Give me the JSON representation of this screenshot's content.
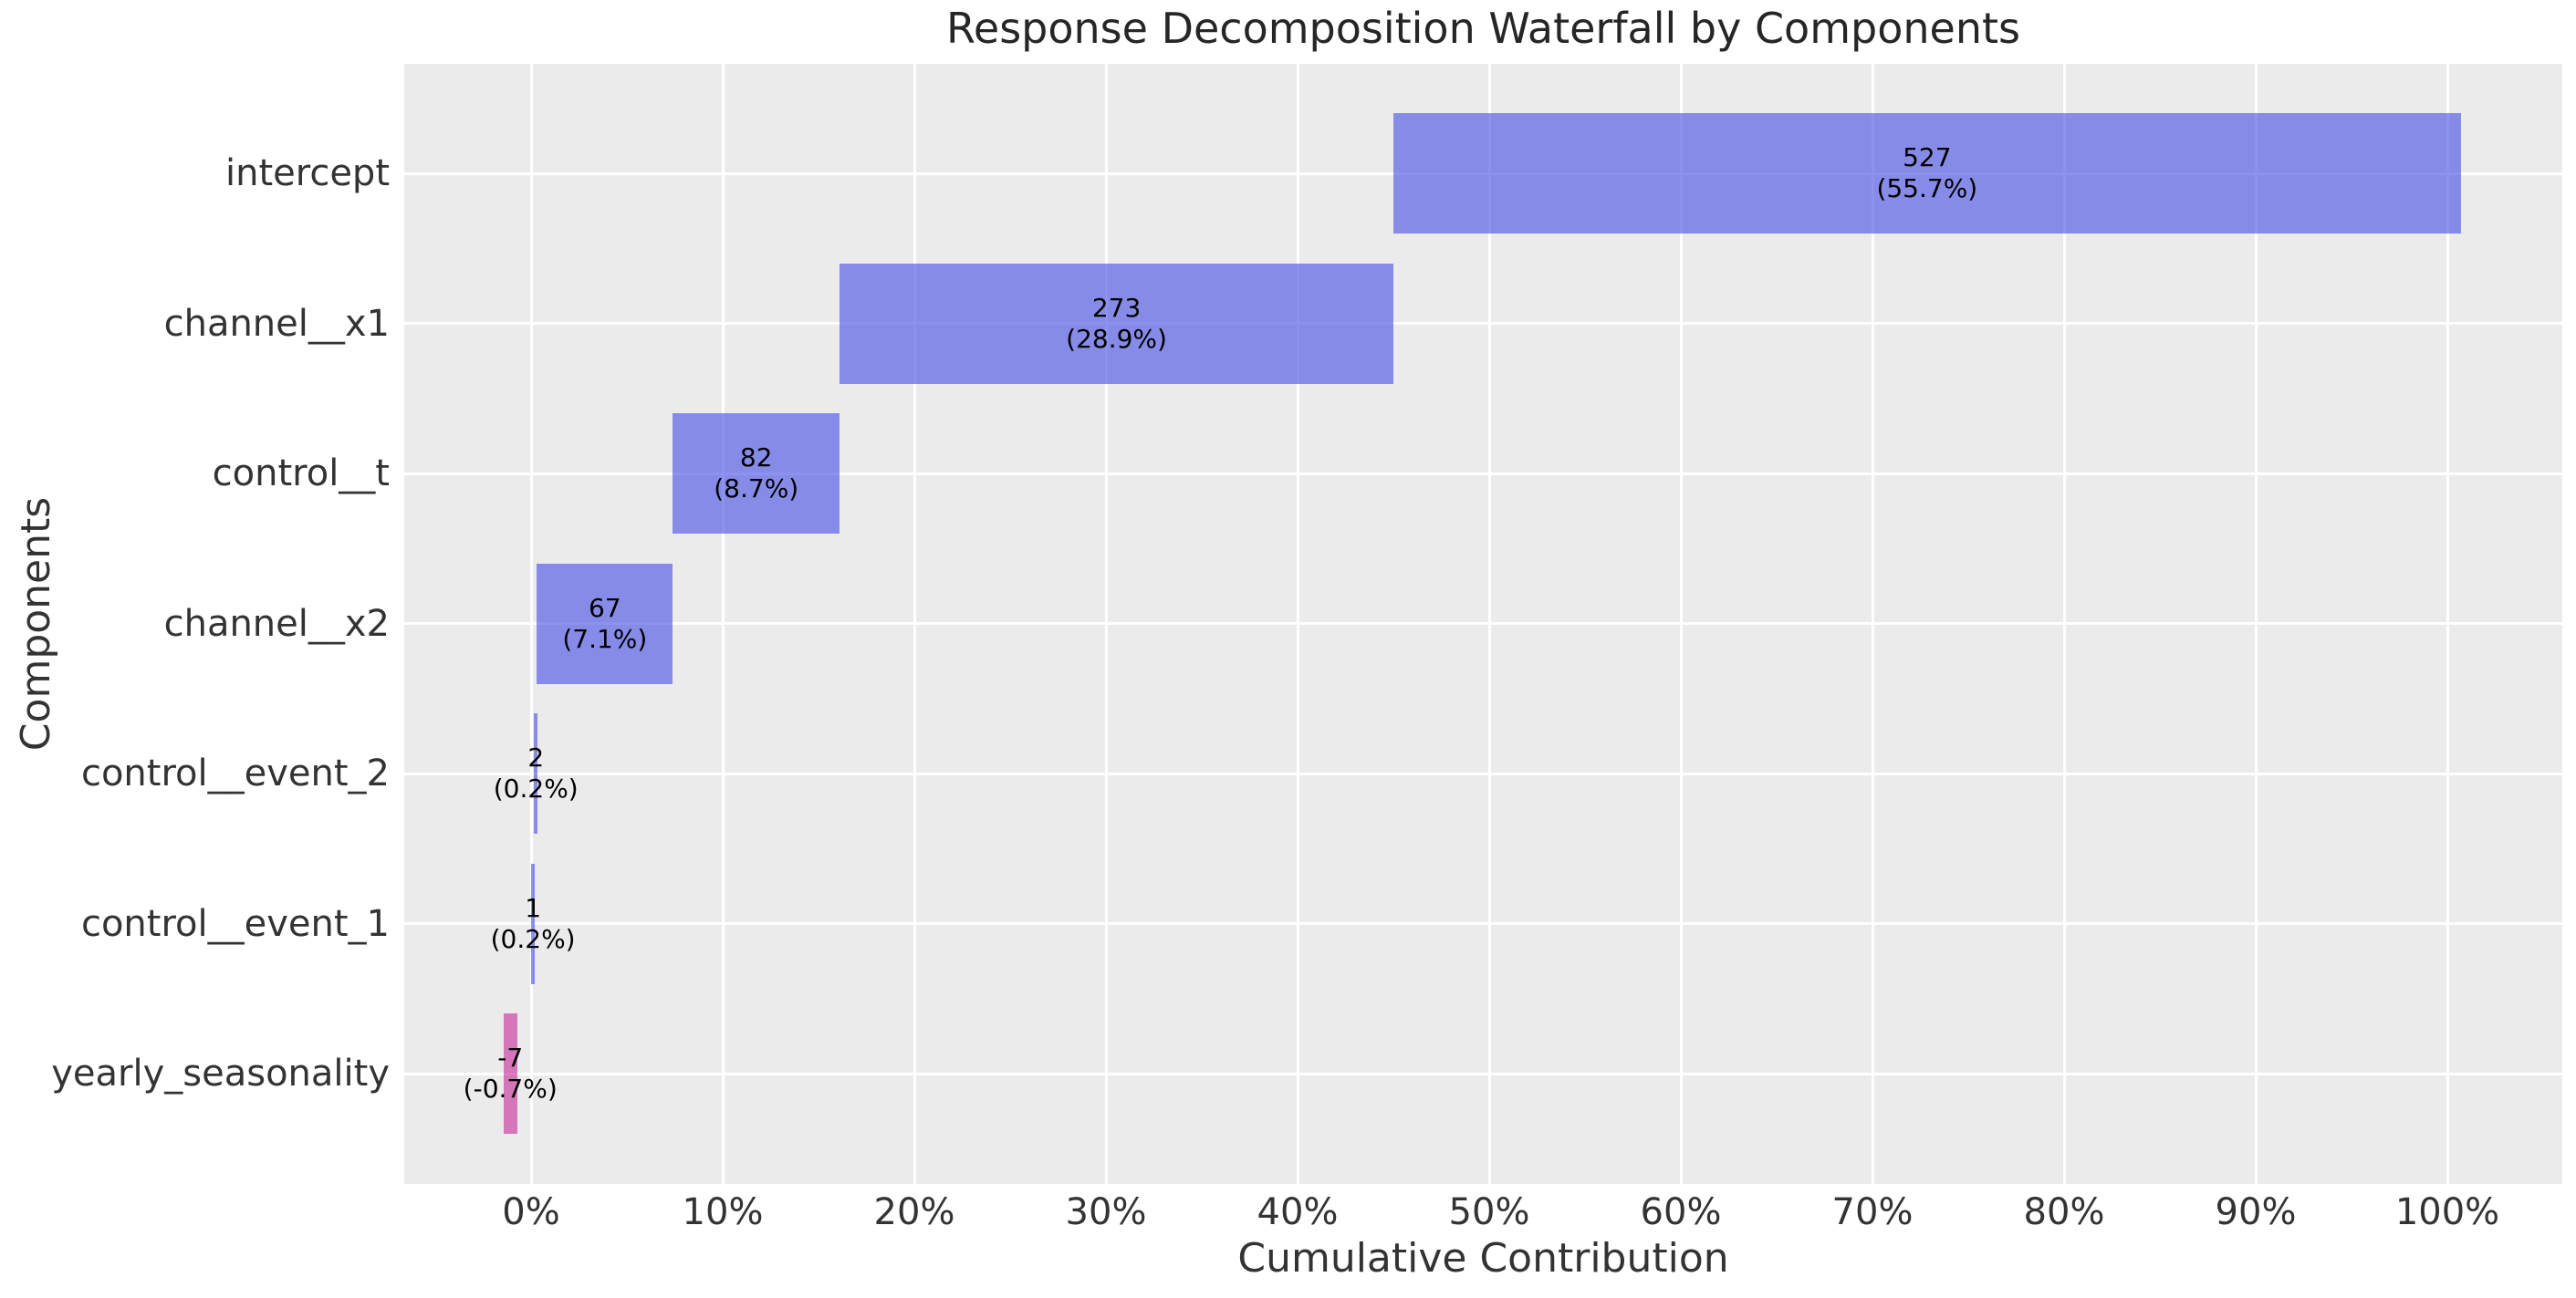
{
  "title": "Response Decomposition Waterfall by Components",
  "axes": {
    "xlabel": "Cumulative Contribution",
    "ylabel": "Components"
  },
  "colors": {
    "plot_background": "#ebebeb",
    "gridline": "#ffffff",
    "positive_bar": "rgba(80,88,230,0.65)",
    "negative_bar": "rgba(200,55,158,0.65)",
    "bar_label": "#000000",
    "tick_label": "#333333",
    "title": "#262626"
  },
  "chart_data": {
    "type": "bar",
    "subtype": "horizontal_waterfall",
    "title": "Response Decomposition Waterfall by Components",
    "xlabel": "Cumulative Contribution",
    "ylabel": "Components",
    "grid": true,
    "legend": false,
    "xlim_pct": [
      -6.6,
      106.0
    ],
    "x_tick_values": [
      0,
      10,
      20,
      30,
      40,
      50,
      60,
      70,
      80,
      90,
      100
    ],
    "x_tick_labels": [
      "0%",
      "10%",
      "20%",
      "30%",
      "40%",
      "50%",
      "60%",
      "70%",
      "80%",
      "90%",
      "100%"
    ],
    "categories": [
      "intercept",
      "channel__x1",
      "control__t",
      "channel__x2",
      "control__event_2",
      "control__event_1",
      "yearly_seasonality"
    ],
    "values": [
      527,
      273,
      82,
      67,
      2,
      1,
      -7
    ],
    "percentages": [
      55.7,
      28.9,
      8.7,
      7.1,
      0.2,
      0.2,
      -0.7
    ],
    "bars": [
      {
        "name": "intercept",
        "value_label": "527",
        "pct_label": "(55.7%)",
        "start_pct": 45.0,
        "end_pct": 100.7,
        "sign": "positive"
      },
      {
        "name": "channel__x1",
        "value_label": "273",
        "pct_label": "(28.9%)",
        "start_pct": 16.1,
        "end_pct": 45.0,
        "sign": "positive"
      },
      {
        "name": "control__t",
        "value_label": "82",
        "pct_label": "(8.7%)",
        "start_pct": 7.4,
        "end_pct": 16.1,
        "sign": "positive"
      },
      {
        "name": "channel__x2",
        "value_label": "67",
        "pct_label": "(7.1%)",
        "start_pct": 0.3,
        "end_pct": 7.4,
        "sign": "positive"
      },
      {
        "name": "control__event_2",
        "value_label": "2",
        "pct_label": "(0.2%)",
        "start_pct": 0.15,
        "end_pct": 0.35,
        "sign": "positive"
      },
      {
        "name": "control__event_1",
        "value_label": "1",
        "pct_label": "(0.2%)",
        "start_pct": 0.0,
        "end_pct": 0.2,
        "sign": "positive"
      },
      {
        "name": "yearly_seasonality",
        "value_label": "-7",
        "pct_label": "(-0.7%)",
        "start_pct": -1.45,
        "end_pct": -0.72,
        "sign": "negative"
      }
    ]
  }
}
